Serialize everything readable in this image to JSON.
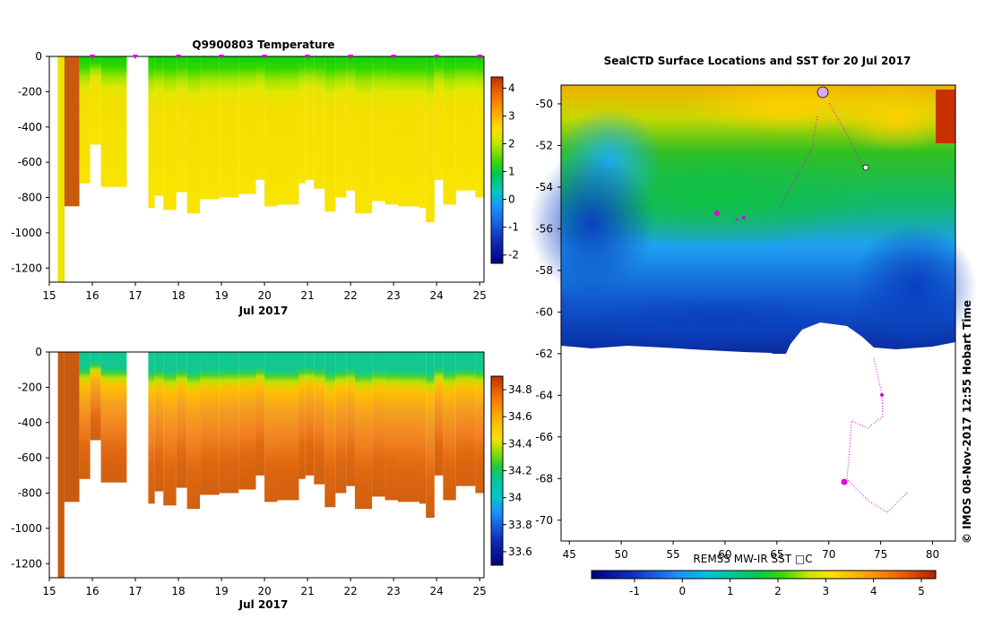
{
  "chart_data": [
    {
      "id": "temperature-section",
      "type": "heatmap",
      "title": "Q9900803  Temperature",
      "xlabel": "Jul 2017",
      "ylabel": "",
      "x_ticks": [
        "15",
        "16",
        "17",
        "18",
        "19",
        "20",
        "21",
        "22",
        "23",
        "24",
        "25"
      ],
      "y_ticks": [
        "0",
        "-200",
        "-400",
        "-600",
        "-800",
        "-1000",
        "-1200"
      ],
      "xlim": [
        15,
        25.1
      ],
      "ylim": [
        -1280,
        0
      ],
      "colorbar": {
        "ticks": [
          "-2",
          "-1",
          "0",
          "1",
          "2",
          "3",
          "4"
        ],
        "range": [
          -2.3,
          4.4
        ]
      },
      "profile_markers_x": [
        16,
        17,
        18,
        19,
        20,
        21,
        22,
        23,
        24,
        25
      ],
      "approx_layers": [
        {
          "depth_range": [
            0,
            -250
          ],
          "value_range": [
            1.0,
            1.6
          ],
          "note": "surface mixed layer (green)"
        },
        {
          "depth_range": [
            -250,
            -500
          ],
          "value_range": [
            1.8,
            2.2
          ],
          "note": "transition (yellow-green)"
        },
        {
          "depth_range": [
            -500,
            -900
          ],
          "value_range": [
            2.2,
            2.4
          ],
          "note": "deep (yellow)"
        }
      ]
    },
    {
      "id": "salinity-section",
      "type": "heatmap",
      "title": "",
      "xlabel": "Jul 2017",
      "ylabel": "",
      "x_ticks": [
        "15",
        "16",
        "17",
        "18",
        "19",
        "20",
        "21",
        "22",
        "23",
        "24",
        "25"
      ],
      "y_ticks": [
        "0",
        "-200",
        "-400",
        "-600",
        "-800",
        "-1000",
        "-1200"
      ],
      "xlim": [
        15,
        25.1
      ],
      "ylim": [
        -1280,
        0
      ],
      "colorbar": {
        "ticks": [
          "33.6",
          "33.8",
          "34",
          "34.2",
          "34.4",
          "34.6",
          "34.8"
        ],
        "range": [
          33.5,
          34.9
        ]
      },
      "approx_layers": [
        {
          "depth_range": [
            0,
            -200
          ],
          "value_range": [
            33.9,
            33.95
          ],
          "note": "surface (teal)"
        },
        {
          "depth_range": [
            -200,
            -350
          ],
          "value_range": [
            34.1,
            34.4
          ],
          "note": "halocline (green-yellow)"
        },
        {
          "depth_range": [
            -350,
            -900
          ],
          "value_range": [
            34.6,
            34.8
          ],
          "note": "deep (orange)"
        }
      ]
    },
    {
      "id": "sst-map",
      "type": "heatmap",
      "title": "SealCTD Surface Locations and SST for 20 Jul 2017",
      "xlabel": "REMSS MW-IR SST □C",
      "ylabel": "",
      "x_ticks": [
        "45",
        "50",
        "55",
        "60",
        "65",
        "70",
        "75",
        "80"
      ],
      "y_ticks": [
        "-50",
        "-52",
        "-54",
        "-56",
        "-58",
        "-60",
        "-62",
        "-64",
        "-66",
        "-68",
        "-70"
      ],
      "xlim": [
        44.2,
        82.2
      ],
      "ylim": [
        -71,
        -49.1
      ],
      "colorbar": {
        "ticks": [
          "-1",
          "0",
          "1",
          "2",
          "3",
          "4",
          "5"
        ],
        "range": [
          -1.9,
          5.3
        ]
      },
      "copyright": "©  IMOS 08-Nov-2017 12:55 Hobart Time"
    }
  ]
}
